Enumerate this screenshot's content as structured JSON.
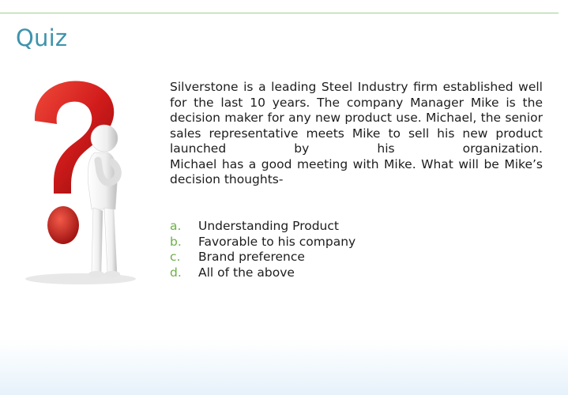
{
  "slide": {
    "title": "Quiz",
    "question": {
      "paragraph_1": "Silverstone is a leading Steel Industry firm established well for the last 10 years. The company Manager Mike is the decision maker for any new product use. Michael, the senior sales representative meets Mike to sell his new product launched by his organization.",
      "paragraph_2": "Michael has a good meeting with Mike. What will be Mike’s decision thoughts-"
    },
    "options": [
      {
        "letter": "a.",
        "text": "Understanding Product"
      },
      {
        "letter": "b.",
        "text": "Favorable to his company"
      },
      {
        "letter": "c.",
        "text": "Brand preference"
      },
      {
        "letter": "d.",
        "text": "All of the above"
      }
    ],
    "illustration_icon": "thinking-person-question-mark-icon"
  },
  "colors": {
    "title": "#3e93ad",
    "rule": "#9ccf8f",
    "option_letter": "#6cb046",
    "question_mark": "#d42020",
    "body_text": "#1d1d1d"
  }
}
